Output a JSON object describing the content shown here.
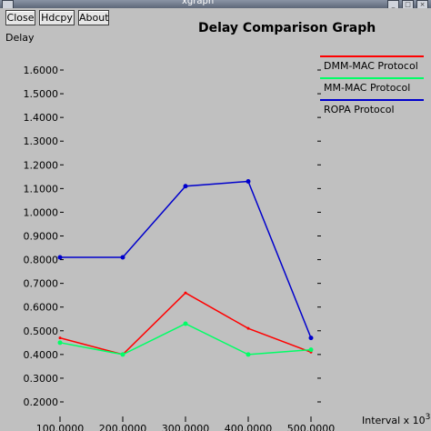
{
  "window": {
    "title": "xgraph",
    "buttons": {
      "close": "Close",
      "hdcpy": "Hdcpy",
      "about": "About"
    }
  },
  "chart_data": {
    "type": "line",
    "title": "Delay Comparison Graph",
    "ylabel": "Delay",
    "xlabel": "Interval x 10",
    "xlabel_exponent": "3",
    "x": [
      100,
      200,
      300,
      400,
      500
    ],
    "x_tick_labels": [
      "100.0000",
      "200.0000",
      "300.0000",
      "400.0000",
      "500.0000"
    ],
    "y_ticks": [
      0.2,
      0.3,
      0.4,
      0.5,
      0.6,
      0.7,
      0.8,
      0.9,
      1.0,
      1.1,
      1.2,
      1.3,
      1.4,
      1.5,
      1.6
    ],
    "y_tick_labels": [
      "0.2000",
      "0.3000",
      "0.4000",
      "0.5000",
      "0.6000",
      "0.7000",
      "0.8000",
      "0.9000",
      "1.0000",
      "1.1000",
      "1.2000",
      "1.3000",
      "1.4000",
      "1.5000",
      "1.6000"
    ],
    "ylim": [
      0.2,
      1.6
    ],
    "grid": false,
    "legend_position": "top-right",
    "series": [
      {
        "name": "DMM-MAC Protocol",
        "color": "#ff0000",
        "markers": false,
        "values": [
          0.47,
          0.4,
          0.66,
          0.51,
          0.41
        ]
      },
      {
        "name": "MM-MAC Protocol",
        "color": "#00ff66",
        "markers": true,
        "values": [
          0.45,
          0.4,
          0.53,
          0.4,
          0.42
        ]
      },
      {
        "name": "ROPA Protocol",
        "color": "#0000cc",
        "markers": true,
        "values": [
          0.81,
          0.81,
          1.11,
          1.13,
          0.47
        ]
      }
    ]
  }
}
